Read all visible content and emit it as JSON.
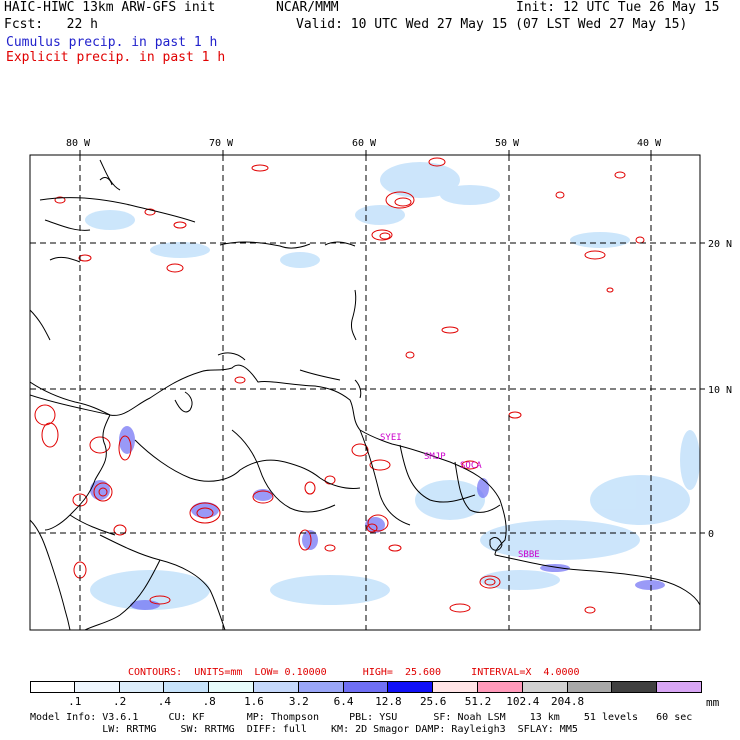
{
  "header": {
    "title": "HAIC-HIWC 13km ARW-GFS init",
    "org": "NCAR/MMM",
    "init": "Init: 12 UTC Tue 26 May 15",
    "fcst": "Fcst:   22 h",
    "valid": "Valid: 10 UTC Wed 27 May 15 (07 LST Wed 27 May 15)",
    "cumulus_label": "Cumulus precip. in past 1 h",
    "explicit_label": "Explicit precip. in past 1 h",
    "cumulus_color": "#2222cc",
    "explicit_color": "#e00000"
  },
  "map": {
    "lon_labels": [
      "80 W",
      "70 W",
      "60 W",
      "50 W",
      "40 W"
    ],
    "lat_labels": [
      "20 N",
      "10 N",
      "0"
    ],
    "stations": [
      "SYEI",
      "SMJP",
      "SOCA",
      "SBBE"
    ]
  },
  "contour_info": {
    "text": "CONTOURS:  UNITS=mm  LOW= 0.10000      HIGH=  25.600     INTERVAL=X  4.0000"
  },
  "colorbar": {
    "colors": [
      "#ffffff",
      "#eef6fe",
      "#dcedfb",
      "#c7e3fb",
      "#e6fbfb",
      "#c5d8fb",
      "#9aa6f7",
      "#6f6ff4",
      "#1010f6",
      "#ffe4e6",
      "#ff9aba",
      "#d2d2d2",
      "#a8a8a8",
      "#404040",
      "#d8a6f4"
    ],
    "labels": [
      ".1",
      ".2",
      ".4",
      ".8",
      "1.6",
      "3.2",
      "6.4",
      "12.8",
      "25.6",
      "51.2",
      "102.4",
      "204.8"
    ],
    "unit": "mm"
  },
  "model_info": {
    "line1": "Model Info: V3.6.1     CU: KF       MP: Thompson     PBL: YSU      SF: Noah LSM    13 km    51 levels   60 sec",
    "line2": "            LW: RRTMG    SW: RRTMG  DIFF: full    KM: 2D Smagor DAMP: Rayleigh3  SFLAY: MM5"
  }
}
